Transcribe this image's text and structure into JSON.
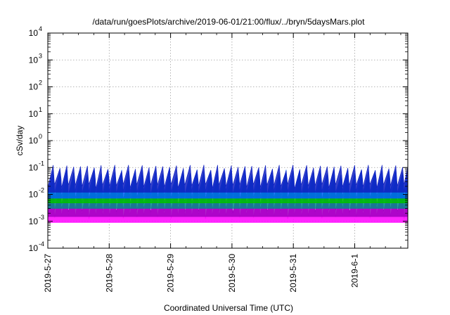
{
  "chart_data": {
    "type": "area",
    "title": "/data/run/goesPlots/archive/2019-06-01/21:00/flux/../bryn/5daysMars.plot",
    "xlabel": "Coordinated Universal Time (UTC)",
    "ylabel": "cSv/day",
    "yscale": "log",
    "ylim": [
      0.0001,
      10000
    ],
    "y_ticks": [
      {
        "base": "10",
        "exp": "-4",
        "value": 0.0001
      },
      {
        "base": "10",
        "exp": "-3",
        "value": 0.001
      },
      {
        "base": "10",
        "exp": "-2",
        "value": 0.01
      },
      {
        "base": "10",
        "exp": "-1",
        "value": 0.1
      },
      {
        "base": "10",
        "exp": "0",
        "value": 1
      },
      {
        "base": "10",
        "exp": "1",
        "value": 10
      },
      {
        "base": "10",
        "exp": "2",
        "value": 100
      },
      {
        "base": "10",
        "exp": "3",
        "value": 1000
      },
      {
        "base": "10",
        "exp": "4",
        "value": 10000
      }
    ],
    "x_tick_labels": [
      "2019-5-27",
      "2019-5-28",
      "2019-5-29",
      "2019-5-30",
      "2019-5-31",
      "2019-6-1"
    ],
    "xlim": [
      "2019-05-27 00:00",
      "2019-06-01 22:00"
    ],
    "grid": true,
    "cycles_per_day": 9,
    "series": [
      {
        "color": "#ff00ff",
        "peak": 0.02,
        "trough": 0.0015
      },
      {
        "color": "#a000c0",
        "peak": 0.025,
        "trough": 0.0025
      },
      {
        "color": "#008b8b",
        "peak": 0.035,
        "trough": 0.005
      },
      {
        "color": "#00c000",
        "peak": 0.045,
        "trough": 0.008
      },
      {
        "color": "#0060ff",
        "peak": 0.07,
        "trough": 0.012
      },
      {
        "color": "#1020c0",
        "peak": 0.1,
        "trough": 0.02
      }
    ]
  }
}
